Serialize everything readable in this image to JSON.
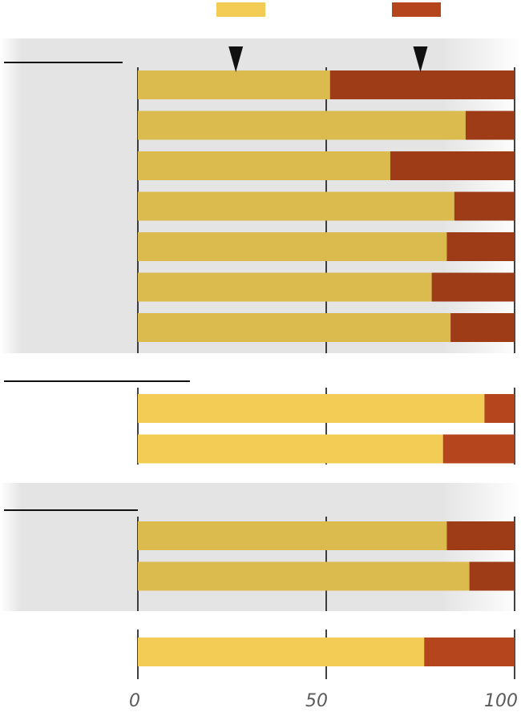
{
  "chart_data": {
    "type": "bar",
    "orientation": "horizontal",
    "stacked": true,
    "title": "",
    "xlabel": "",
    "ylabel": "",
    "xlim": [
      0,
      100
    ],
    "x_ticks": [
      0,
      50,
      100
    ],
    "x_tick_labels": [
      "0",
      "50",
      "100"
    ],
    "grid": true,
    "legend": {
      "placement": "top",
      "entries": [
        {
          "name": "",
          "color": "#f2cc55"
        },
        {
          "name": "",
          "color": "#b5451c"
        }
      ]
    },
    "markers": [
      {
        "shape": "down-triangle",
        "value": 26
      },
      {
        "shape": "down-triangle",
        "value": 75
      }
    ],
    "groups": [
      {
        "label": "",
        "shaded": true,
        "values": [
          51,
          87,
          67,
          84,
          82,
          78,
          83
        ]
      },
      {
        "label": "",
        "shaded": false,
        "values": [
          92,
          81
        ]
      },
      {
        "label": "",
        "shaded": true,
        "values": [
          82,
          88
        ]
      },
      {
        "label": "",
        "shaded": false,
        "values": [
          76
        ]
      }
    ],
    "series": [
      {
        "name": "",
        "color": "#f2cc55",
        "shaded_color": "#dbbb4d",
        "role": "first segment"
      },
      {
        "name": "",
        "color": "#b5451c",
        "shaded_color": "#9f3c18",
        "role": "remainder to 100"
      }
    ]
  }
}
